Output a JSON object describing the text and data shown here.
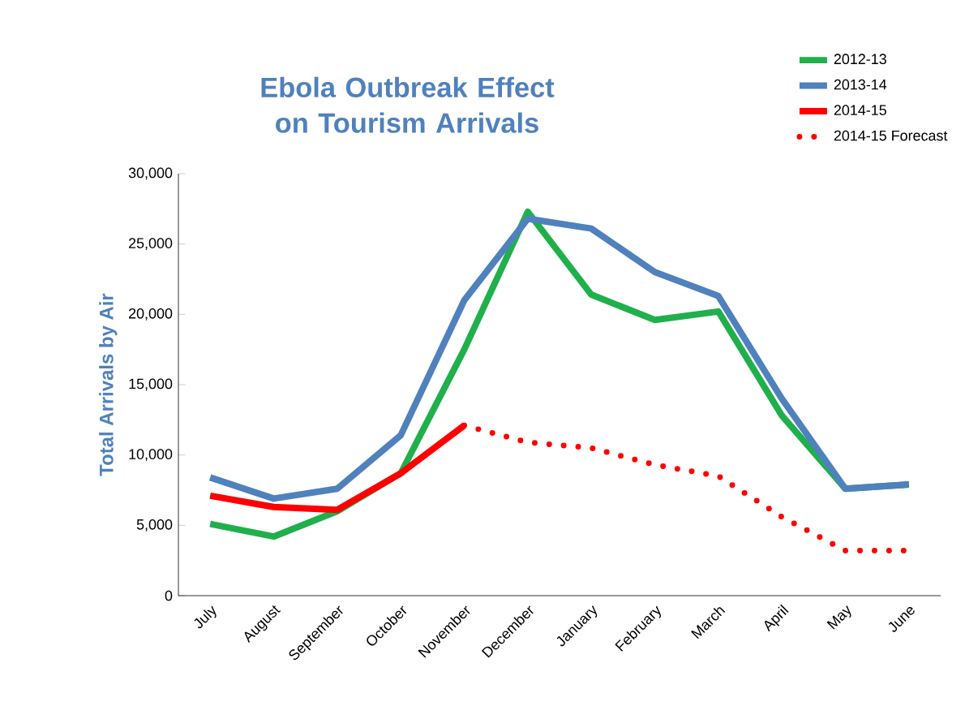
{
  "chart_data": {
    "type": "line",
    "title": "Ebola Outbreak Effect on Tourism Arrivals",
    "ylabel": "Total Arrivals by Air",
    "categories": [
      "July",
      "August",
      "September",
      "October",
      "November",
      "December",
      "January",
      "February",
      "March",
      "April",
      "May",
      "June"
    ],
    "series": [
      {
        "name": "2012-13",
        "color": "#1fb04b",
        "values": [
          5100,
          4200,
          6000,
          8700,
          17500,
          27300,
          21400,
          19600,
          20200,
          12800,
          7600,
          7900
        ]
      },
      {
        "name": "2013-14",
        "color": "#4f81bd",
        "values": [
          8400,
          6900,
          7600,
          11400,
          21000,
          26800,
          26100,
          23000,
          21300,
          14000,
          7600,
          7900
        ]
      },
      {
        "name": "2014-15",
        "color": "#ff0000",
        "values": [
          7100,
          6300,
          6100,
          8700,
          12100,
          null,
          null,
          null,
          null,
          null,
          null,
          null
        ]
      },
      {
        "name": "2014-15 Forecast",
        "color": "#ff0000",
        "line_style": "dotted",
        "values": [
          null,
          null,
          null,
          null,
          12100,
          10900,
          10500,
          9300,
          8500,
          5600,
          3200,
          3200
        ]
      }
    ],
    "ylim": [
      0,
      30000
    ],
    "yticks": [
      0,
      {
        "value": 5000,
        "label": "5,000"
      },
      {
        "value": 10000,
        "label": "10,000"
      },
      {
        "value": 15000,
        "label": "15,000"
      },
      {
        "value": 20000,
        "label": "20,000"
      },
      {
        "value": 25000,
        "label": "25,000"
      },
      {
        "value": 30000,
        "label": "30,000"
      }
    ],
    "legend": "top right",
    "grid": false,
    "marker": "none"
  }
}
